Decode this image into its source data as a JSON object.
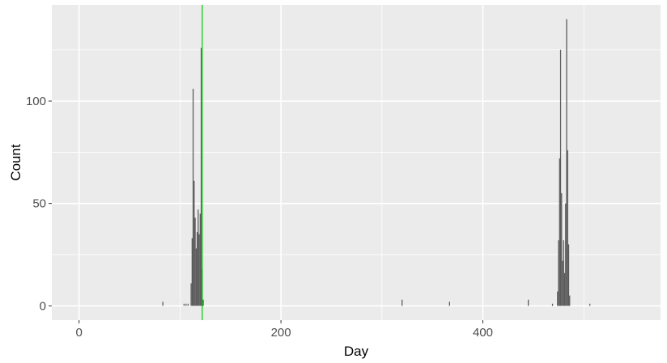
{
  "chart_data": {
    "type": "bar",
    "title": "",
    "xlabel": "Day",
    "ylabel": "Count",
    "xlim": [
      -27,
      576
    ],
    "ylim": [
      -7,
      147
    ],
    "x_ticks": [
      0,
      200,
      400
    ],
    "x_minor_ticks": [
      100,
      300,
      500
    ],
    "y_ticks": [
      0,
      50,
      100
    ],
    "y_minor_ticks": [
      25,
      75,
      125
    ],
    "grid": true,
    "panel_color": "#ebebeb",
    "grid_color": "#ffffff",
    "bar_color": "#595959",
    "vline": {
      "x": 122,
      "color": "#00cc00"
    },
    "bars": [
      {
        "x": 83,
        "y": 2
      },
      {
        "x": 104,
        "y": 1
      },
      {
        "x": 106,
        "y": 1
      },
      {
        "x": 108,
        "y": 1
      },
      {
        "x": 111,
        "y": 11
      },
      {
        "x": 112,
        "y": 33
      },
      {
        "x": 113,
        "y": 106
      },
      {
        "x": 114,
        "y": 61
      },
      {
        "x": 115,
        "y": 43
      },
      {
        "x": 116,
        "y": 28
      },
      {
        "x": 117,
        "y": 36
      },
      {
        "x": 118,
        "y": 47
      },
      {
        "x": 119,
        "y": 35
      },
      {
        "x": 120,
        "y": 45
      },
      {
        "x": 121,
        "y": 126
      },
      {
        "x": 122,
        "y": 18
      },
      {
        "x": 123,
        "y": 3
      },
      {
        "x": 320,
        "y": 3
      },
      {
        "x": 367,
        "y": 2
      },
      {
        "x": 445,
        "y": 3
      },
      {
        "x": 469,
        "y": 1
      },
      {
        "x": 474,
        "y": 7
      },
      {
        "x": 475,
        "y": 32
      },
      {
        "x": 476,
        "y": 72
      },
      {
        "x": 477,
        "y": 125
      },
      {
        "x": 478,
        "y": 55
      },
      {
        "x": 479,
        "y": 22
      },
      {
        "x": 480,
        "y": 32
      },
      {
        "x": 481,
        "y": 16
      },
      {
        "x": 482,
        "y": 50
      },
      {
        "x": 483,
        "y": 140
      },
      {
        "x": 484,
        "y": 76
      },
      {
        "x": 485,
        "y": 30
      },
      {
        "x": 486,
        "y": 5
      },
      {
        "x": 506,
        "y": 1
      }
    ]
  }
}
